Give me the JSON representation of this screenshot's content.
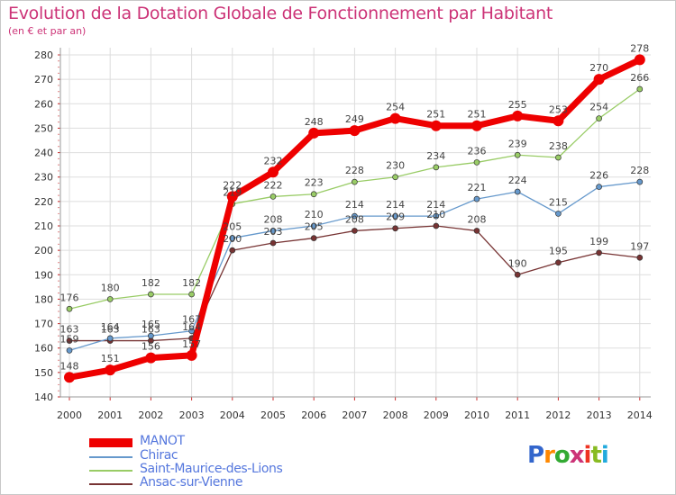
{
  "title": "Evolution de la Dotation Globale de Fonctionnement par Habitant",
  "subtitle": "(en € et par an)",
  "logo_text": "Proxiti",
  "chart_data": {
    "type": "line",
    "x": [
      "2000",
      "2001",
      "2002",
      "2003",
      "2004",
      "2005",
      "2006",
      "2007",
      "2008",
      "2009",
      "2010",
      "2011",
      "2012",
      "2013",
      "2014"
    ],
    "ylim": [
      140,
      280
    ],
    "yticks": [
      140,
      150,
      160,
      170,
      180,
      190,
      200,
      210,
      220,
      230,
      240,
      250,
      260,
      270,
      280
    ],
    "grid": true,
    "legend_position": "bottom",
    "series": [
      {
        "name": "MANOT",
        "color": "#ee0000",
        "values": [
          148,
          151,
          156,
          157,
          222,
          232,
          248,
          249,
          254,
          251,
          251,
          255,
          253,
          270,
          278
        ]
      },
      {
        "name": "Chirac",
        "color": "#6699cc",
        "values": [
          159,
          164,
          165,
          167,
          205,
          208,
          210,
          214,
          214,
          214,
          221,
          224,
          215,
          226,
          228
        ]
      },
      {
        "name": "Saint-Maurice-des-Lions",
        "color": "#99cc66",
        "values": [
          176,
          180,
          182,
          182,
          219,
          222,
          223,
          228,
          230,
          234,
          236,
          239,
          238,
          254,
          266
        ]
      },
      {
        "name": "Ansac-sur-Vienne",
        "color": "#773333",
        "values": [
          163,
          163,
          163,
          164,
          200,
          203,
          205,
          208,
          209,
          210,
          208,
          190,
          195,
          199,
          197
        ]
      }
    ]
  }
}
